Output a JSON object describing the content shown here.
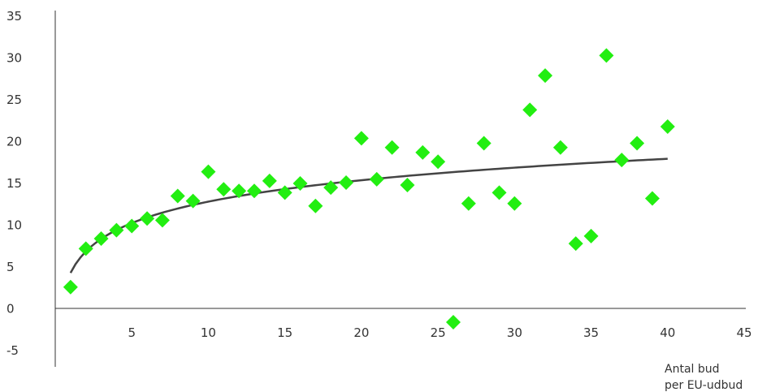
{
  "chart_data": {
    "type": "scatter",
    "title": "",
    "xlabel": [
      "Antal bud",
      "per EU-udbud"
    ],
    "ylabel": "",
    "xlim": [
      0,
      45
    ],
    "ylim": [
      -5,
      35
    ],
    "x_ticks": [
      "5",
      "10",
      "15",
      "20",
      "25",
      "30",
      "35",
      "40",
      "45"
    ],
    "y_ticks": [
      "35",
      "30",
      "25",
      "20",
      "15",
      "10",
      "5",
      "0",
      "-5"
    ],
    "grid": false,
    "legend": "none",
    "marker_color": "#22ee11",
    "trendline_color": "#444444",
    "trendline": {
      "type": "logarithmic",
      "a": 4.3,
      "b": 3.7,
      "x_range": [
        1,
        40
      ]
    },
    "points": [
      {
        "x": 1,
        "y": 2.6
      },
      {
        "x": 2,
        "y": 7.2
      },
      {
        "x": 3,
        "y": 8.4
      },
      {
        "x": 4,
        "y": 9.4
      },
      {
        "x": 5,
        "y": 9.9
      },
      {
        "x": 6,
        "y": 10.8
      },
      {
        "x": 7,
        "y": 10.6
      },
      {
        "x": 8,
        "y": 13.5
      },
      {
        "x": 9,
        "y": 12.9
      },
      {
        "x": 10,
        "y": 16.4
      },
      {
        "x": 11,
        "y": 14.3
      },
      {
        "x": 12,
        "y": 14.1
      },
      {
        "x": 13,
        "y": 14.1
      },
      {
        "x": 14,
        "y": 15.3
      },
      {
        "x": 15,
        "y": 13.9
      },
      {
        "x": 16,
        "y": 15.0
      },
      {
        "x": 17,
        "y": 12.3
      },
      {
        "x": 18,
        "y": 14.5
      },
      {
        "x": 19,
        "y": 15.1
      },
      {
        "x": 20,
        "y": 20.4
      },
      {
        "x": 21,
        "y": 15.5
      },
      {
        "x": 22,
        "y": 19.3
      },
      {
        "x": 23,
        "y": 14.8
      },
      {
        "x": 24,
        "y": 18.7
      },
      {
        "x": 25,
        "y": 17.6
      },
      {
        "x": 26,
        "y": -1.6
      },
      {
        "x": 27,
        "y": 12.6
      },
      {
        "x": 28,
        "y": 19.8
      },
      {
        "x": 29,
        "y": 13.9
      },
      {
        "x": 30,
        "y": 12.6
      },
      {
        "x": 31,
        "y": 23.8
      },
      {
        "x": 32,
        "y": 27.9
      },
      {
        "x": 33,
        "y": 19.3
      },
      {
        "x": 34,
        "y": 7.8
      },
      {
        "x": 35,
        "y": 8.7
      },
      {
        "x": 36,
        "y": 30.3
      },
      {
        "x": 37,
        "y": 17.8
      },
      {
        "x": 38,
        "y": 19.8
      },
      {
        "x": 39,
        "y": 13.2
      },
      {
        "x": 40,
        "y": 21.8
      }
    ]
  }
}
